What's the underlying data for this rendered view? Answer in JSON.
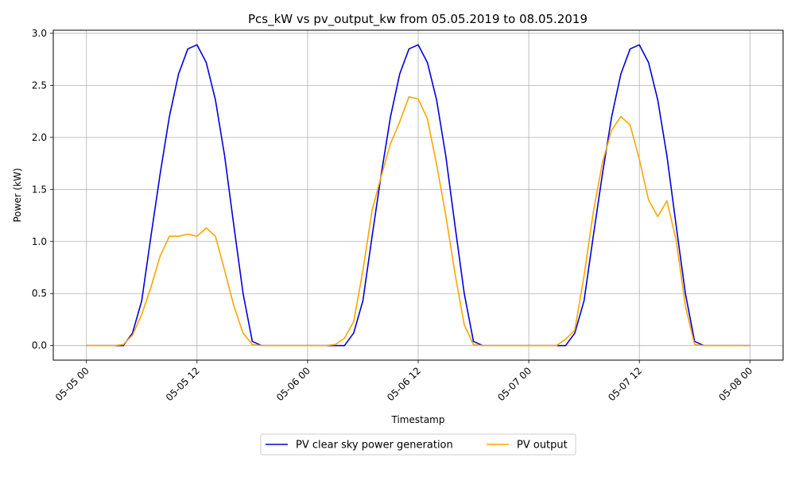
{
  "chart_data": {
    "type": "line",
    "title": "Pcs_kW vs pv_output_kw from 05.05.2019 to 08.05.2019",
    "xlabel": "Timestamp",
    "ylabel": "Power (kW)",
    "x_ticks": [
      "05-05 00",
      "05-05 12",
      "05-06 00",
      "05-06 12",
      "05-07 00",
      "05-07 12",
      "05-08 00"
    ],
    "y_ticks": [
      "0.0",
      "0.5",
      "1.0",
      "1.5",
      "2.0",
      "2.5",
      "3.0"
    ],
    "xlim_hours": [
      -3.6,
      75.6
    ],
    "ylim": [
      -0.14,
      3.03
    ],
    "grid": true,
    "legend_position": "bottom-center",
    "series": [
      {
        "name": "PV clear sky power generation",
        "color": "#0000dd",
        "points": [
          [
            0,
            0
          ],
          [
            1,
            0
          ],
          [
            2,
            0
          ],
          [
            3,
            0
          ],
          [
            4,
            0
          ],
          [
            5,
            0.12
          ],
          [
            6,
            0.43
          ],
          [
            7,
            1.05
          ],
          [
            8,
            1.65
          ],
          [
            9,
            2.2
          ],
          [
            10,
            2.61
          ],
          [
            11,
            2.85
          ],
          [
            12,
            2.89
          ],
          [
            13,
            2.72
          ],
          [
            14,
            2.36
          ],
          [
            15,
            1.82
          ],
          [
            16,
            1.15
          ],
          [
            17,
            0.5
          ],
          [
            18,
            0.04
          ],
          [
            19,
            0
          ],
          [
            24,
            0
          ],
          [
            25,
            0
          ],
          [
            26,
            0
          ],
          [
            27,
            0
          ],
          [
            28,
            0
          ],
          [
            29,
            0.12
          ],
          [
            30,
            0.43
          ],
          [
            31,
            1.05
          ],
          [
            32,
            1.65
          ],
          [
            33,
            2.2
          ],
          [
            34,
            2.61
          ],
          [
            35,
            2.85
          ],
          [
            36,
            2.89
          ],
          [
            37,
            2.72
          ],
          [
            38,
            2.36
          ],
          [
            39,
            1.82
          ],
          [
            40,
            1.15
          ],
          [
            41,
            0.5
          ],
          [
            42,
            0.04
          ],
          [
            43,
            0
          ],
          [
            48,
            0
          ],
          [
            49,
            0
          ],
          [
            50,
            0
          ],
          [
            51,
            0
          ],
          [
            52,
            0
          ],
          [
            53,
            0.12
          ],
          [
            54,
            0.43
          ],
          [
            55,
            1.05
          ],
          [
            56,
            1.65
          ],
          [
            57,
            2.2
          ],
          [
            58,
            2.61
          ],
          [
            59,
            2.85
          ],
          [
            60,
            2.89
          ],
          [
            61,
            2.72
          ],
          [
            62,
            2.36
          ],
          [
            63,
            1.82
          ],
          [
            64,
            1.15
          ],
          [
            65,
            0.5
          ],
          [
            66,
            0.04
          ],
          [
            67,
            0
          ],
          [
            72,
            0
          ]
        ]
      },
      {
        "name": "PV output",
        "color": "#ffa500",
        "points": [
          [
            0,
            0
          ],
          [
            1,
            0
          ],
          [
            2,
            0
          ],
          [
            3,
            0
          ],
          [
            4,
            0.01
          ],
          [
            5,
            0.1
          ],
          [
            6,
            0.3
          ],
          [
            7,
            0.56
          ],
          [
            8,
            0.86
          ],
          [
            9,
            1.05
          ],
          [
            10,
            1.05
          ],
          [
            11,
            1.07
          ],
          [
            12,
            1.05
          ],
          [
            13,
            1.13
          ],
          [
            14,
            1.05
          ],
          [
            15,
            0.72
          ],
          [
            16,
            0.38
          ],
          [
            17,
            0.12
          ],
          [
            18,
            0.01
          ],
          [
            19,
            0
          ],
          [
            24,
            0
          ],
          [
            25,
            0
          ],
          [
            26,
            0
          ],
          [
            27,
            0.01
          ],
          [
            28,
            0.07
          ],
          [
            29,
            0.23
          ],
          [
            30,
            0.72
          ],
          [
            31,
            1.3
          ],
          [
            32,
            1.63
          ],
          [
            33,
            1.94
          ],
          [
            34,
            2.15
          ],
          [
            35,
            2.39
          ],
          [
            36,
            2.37
          ],
          [
            37,
            2.18
          ],
          [
            38,
            1.74
          ],
          [
            39,
            1.25
          ],
          [
            40,
            0.69
          ],
          [
            41,
            0.2
          ],
          [
            42,
            0.01
          ],
          [
            43,
            0
          ],
          [
            48,
            0
          ],
          [
            49,
            0
          ],
          [
            50,
            0
          ],
          [
            51,
            0
          ],
          [
            52,
            0.06
          ],
          [
            53,
            0.15
          ],
          [
            54,
            0.67
          ],
          [
            55,
            1.28
          ],
          [
            56,
            1.76
          ],
          [
            57,
            2.07
          ],
          [
            58,
            2.2
          ],
          [
            59,
            2.12
          ],
          [
            60,
            1.79
          ],
          [
            61,
            1.4
          ],
          [
            62,
            1.24
          ],
          [
            63,
            1.39
          ],
          [
            64,
            1.01
          ],
          [
            65,
            0.38
          ],
          [
            66,
            0.01
          ],
          [
            67,
            0
          ],
          [
            72,
            0
          ]
        ]
      }
    ]
  }
}
